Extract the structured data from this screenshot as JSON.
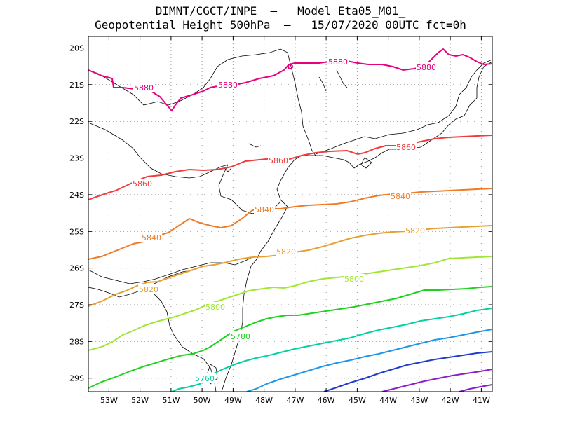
{
  "header": {
    "line1": "DIMNT/CGCT/INPE  –   Model Eta05_M01_",
    "line2": "Geopotential Height 500hPa  –   15/07/2020 00UTC fct=0h"
  },
  "axes": {
    "lat_labels": [
      "20S",
      "21S",
      "22S",
      "23S",
      "24S",
      "25S",
      "26S",
      "27S",
      "28S",
      "29S"
    ],
    "lon_labels": [
      "53W",
      "52W",
      "51W",
      "50W",
      "49W",
      "48W",
      "47W",
      "46W",
      "45W",
      "44W",
      "43W",
      "42W",
      "41W"
    ]
  },
  "contours": [
    {
      "level": 5880,
      "color": "#e8007e",
      "labels": [
        "5880",
        "5880",
        "5880",
        "5880"
      ]
    },
    {
      "level": 5860,
      "color": "#f03c3c",
      "labels": [
        "5860",
        "5860",
        "5860"
      ]
    },
    {
      "level": 5840,
      "color": "#f07a28",
      "labels": [
        "5840",
        "5840",
        "5840"
      ]
    },
    {
      "level": 5820,
      "color": "#e6a032",
      "labels": [
        "5820",
        "5820",
        "5820"
      ]
    },
    {
      "level": 5800,
      "color": "#a0e632",
      "labels": [
        "5800",
        "5800"
      ]
    },
    {
      "level": 5780,
      "color": "#1ed21e",
      "labels": [
        "5780"
      ]
    },
    {
      "level": 5760,
      "color": "#00d2a0",
      "labels": [
        "5760"
      ]
    },
    {
      "level": 5740,
      "color": "#1e96e6",
      "labels": []
    },
    {
      "level": 5720,
      "color": "#1e3cc8",
      "labels": []
    },
    {
      "level": 5700,
      "color": "#8c1ec8",
      "labels": []
    }
  ]
}
